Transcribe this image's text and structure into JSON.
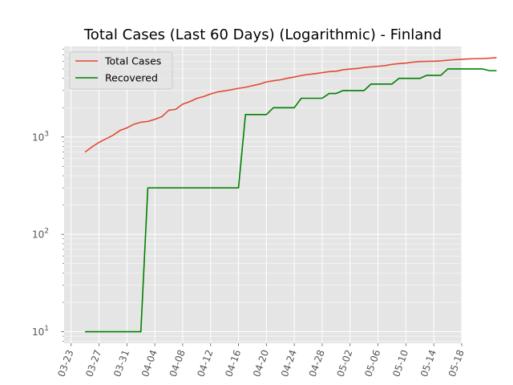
{
  "chart_data": {
    "type": "line",
    "title": "Total Cases (Last 60 Days) (Logarithmic) - Finland",
    "xlabel": "",
    "ylabel": "",
    "yscale": "log",
    "grid": true,
    "legend_position": "top-left",
    "start_date": "2020-03-25",
    "x_range": [
      "2020-03-22",
      "2020-05-18"
    ],
    "ylim": [
      7.6,
      8500
    ],
    "x_ticks": [
      "03-23",
      "03-27",
      "03-31",
      "04-04",
      "04-08",
      "04-12",
      "04-16",
      "04-20",
      "04-24",
      "04-28",
      "05-02",
      "05-06",
      "05-10",
      "05-14",
      "05-18"
    ],
    "y_ticks": [
      {
        "value": 10,
        "base": "10",
        "exp": "1"
      },
      {
        "value": 100,
        "base": "10",
        "exp": "2"
      },
      {
        "value": 1000,
        "base": "10",
        "exp": "3"
      }
    ],
    "series": [
      {
        "name": "Total Cases",
        "color": "#e24a33",
        "values": [
          700,
          792,
          880,
          958,
          1041,
          1167,
          1240,
          1352,
          1418,
          1446,
          1518,
          1615,
          1882,
          1927,
          2176,
          2308,
          2487,
          2605,
          2769,
          2905,
          2974,
          3064,
          3161,
          3237,
          3369,
          3489,
          3681,
          3783,
          3868,
          4014,
          4129,
          4284,
          4395,
          4475,
          4576,
          4695,
          4740,
          4906,
          4995,
          5051,
          5176,
          5254,
          5327,
          5412,
          5573,
          5673,
          5738,
          5880,
          5962,
          5984,
          6003,
          6054,
          6145,
          6228,
          6286,
          6347,
          6380,
          6399,
          6443,
          6537
        ]
      },
      {
        "name": "Recovered",
        "color": "#008000",
        "values": [
          10,
          10,
          10,
          10,
          10,
          10,
          10,
          10,
          10,
          300,
          300,
          300,
          300,
          300,
          300,
          300,
          300,
          300,
          300,
          300,
          300,
          300,
          300,
          1700,
          1700,
          1700,
          1700,
          2000,
          2000,
          2000,
          2000,
          2500,
          2500,
          2500,
          2500,
          2800,
          2800,
          3000,
          3000,
          3000,
          3000,
          3500,
          3500,
          3500,
          3500,
          4000,
          4000,
          4000,
          4000,
          4300,
          4300,
          4300,
          5000,
          5000,
          5000,
          5000,
          5000,
          5000,
          4800,
          4800
        ]
      }
    ]
  }
}
